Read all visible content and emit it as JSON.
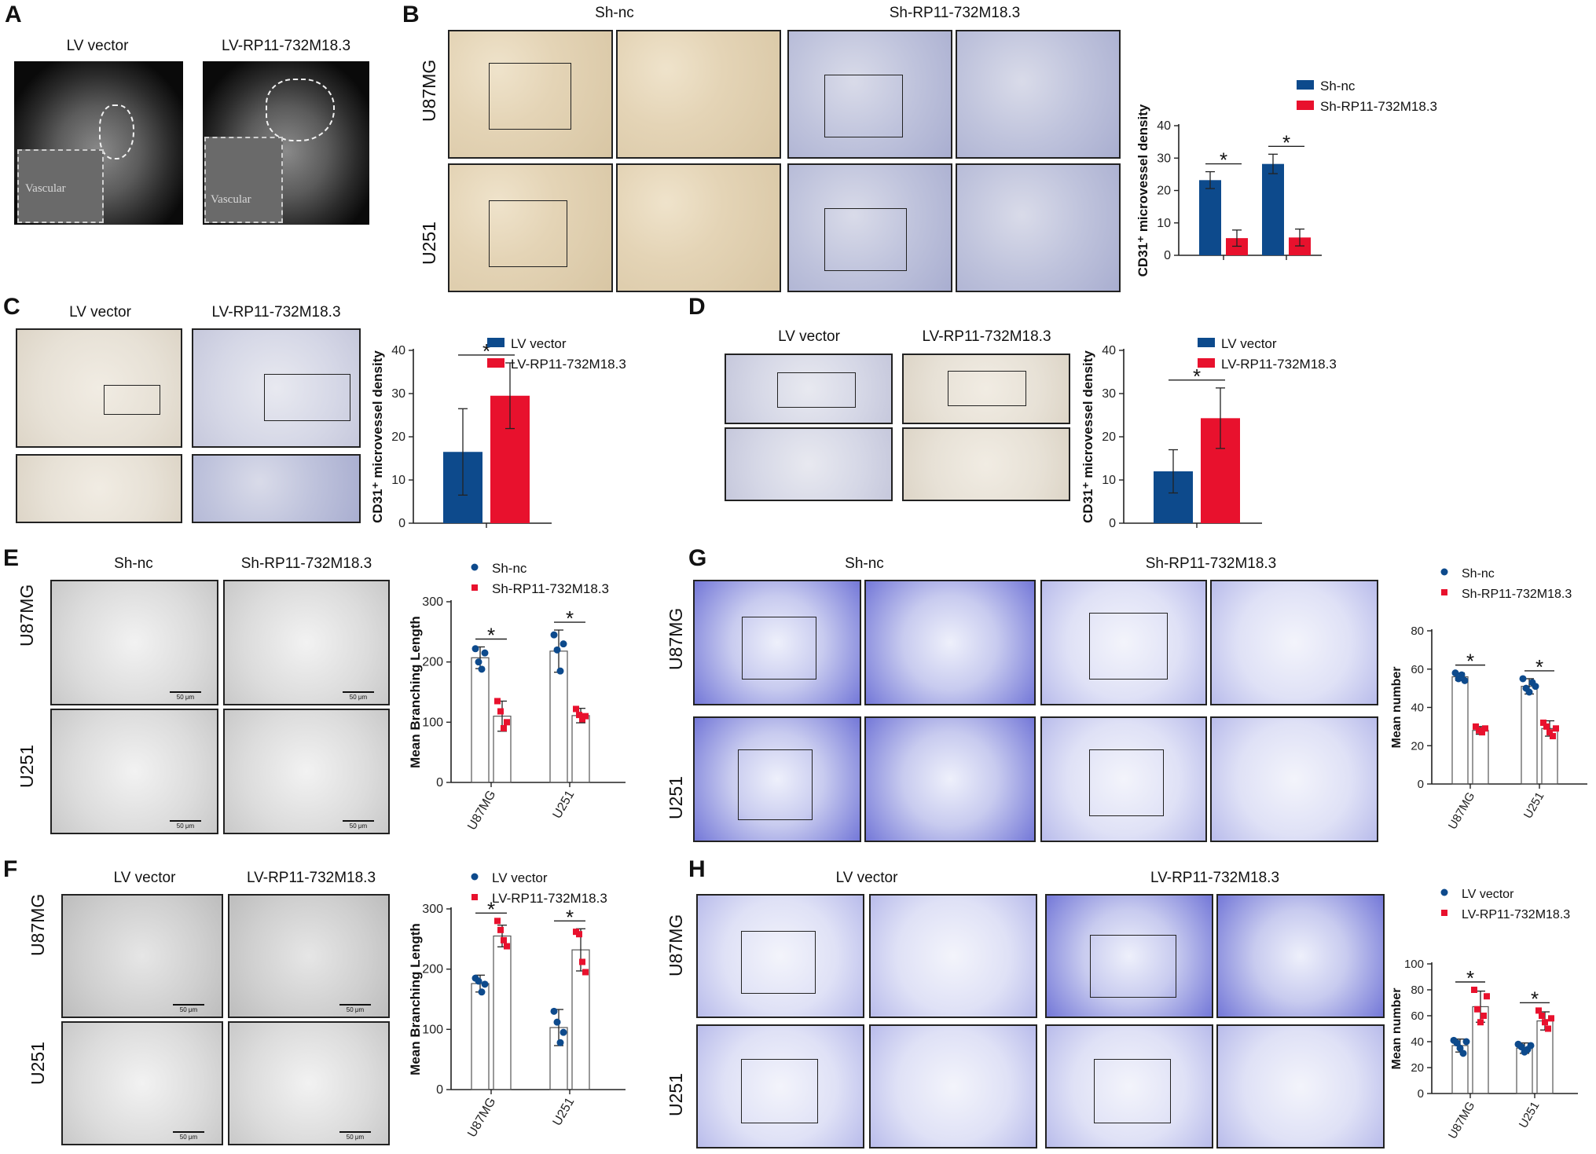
{
  "panels": {
    "A": {
      "letter": "A",
      "col_labels": [
        "LV vector",
        "LV-RP11-732M18.3"
      ],
      "inset_label": "Vascular"
    },
    "B": {
      "letter": "B",
      "col_labels": [
        "Sh-nc",
        "Sh-RP11-732M18.3"
      ],
      "row_labels": [
        "U87MG",
        "U251"
      ]
    },
    "C": {
      "letter": "C",
      "col_labels": [
        "LV vector",
        "LV-RP11-732M18.3"
      ]
    },
    "D": {
      "letter": "D",
      "col_labels": [
        "LV vector",
        "LV-RP11-732M18.3"
      ]
    },
    "E": {
      "letter": "E",
      "col_labels": [
        "Sh-nc",
        "Sh-RP11-732M18.3"
      ],
      "row_labels": [
        "U87MG",
        "U251"
      ],
      "scale_bar": "50 μm"
    },
    "F": {
      "letter": "F",
      "col_labels": [
        "LV vector",
        "LV-RP11-732M18.3"
      ],
      "row_labels": [
        "U87MG",
        "U251"
      ],
      "scale_bar": "50 μm"
    },
    "G": {
      "letter": "G",
      "col_labels": [
        "Sh-nc",
        "Sh-RP11-732M18.3"
      ],
      "row_labels": [
        "U87MG",
        "U251"
      ]
    },
    "H": {
      "letter": "H",
      "col_labels": [
        "LV vector",
        "LV-RP11-732M18.3"
      ],
      "row_labels": [
        "U87MG",
        "U251"
      ]
    }
  },
  "colors": {
    "blue": "#0d4a8c",
    "red": "#e8112d"
  },
  "chart_data": [
    {
      "id": "B",
      "type": "bar",
      "categories": [
        "U87MG",
        "U251"
      ],
      "series": [
        {
          "name": "Sh-nc",
          "values": [
            23.2,
            28.2
          ],
          "err": [
            2.6,
            3.0
          ]
        },
        {
          "name": "Sh-RP11-732M18.3",
          "values": [
            5.3,
            5.5
          ],
          "err": [
            2.5,
            2.6
          ]
        }
      ],
      "ylabel": "CD31⁺ microvessel density",
      "ylim": [
        0,
        40
      ],
      "yticks": [
        0,
        10,
        20,
        30,
        40
      ],
      "show_xtick_labels": false,
      "sig": "*"
    },
    {
      "id": "C",
      "type": "bar",
      "categories": [
        ""
      ],
      "series": [
        {
          "name": "LV vector",
          "values": [
            16.5
          ],
          "err": [
            10.0
          ]
        },
        {
          "name": "LV-RP11-732M18.3",
          "values": [
            29.5
          ],
          "err": [
            7.6
          ]
        }
      ],
      "ylabel": "CD31⁺ microvessel density",
      "ylim": [
        0,
        40
      ],
      "yticks": [
        0,
        10,
        20,
        30,
        40
      ],
      "show_xtick_labels": false,
      "sig": "*"
    },
    {
      "id": "D",
      "type": "bar",
      "categories": [
        ""
      ],
      "series": [
        {
          "name": "LV vector",
          "values": [
            12.0
          ],
          "err": [
            5.0
          ]
        },
        {
          "name": "LV-RP11-732M18.3",
          "values": [
            24.3
          ],
          "err": [
            7.0
          ]
        }
      ],
      "ylabel": "CD31⁺ microvessel density",
      "ylim": [
        0,
        40
      ],
      "yticks": [
        0,
        10,
        20,
        30,
        40
      ],
      "show_xtick_labels": false,
      "sig": "*"
    },
    {
      "id": "E",
      "type": "bar",
      "categories": [
        "U87MG",
        "U251"
      ],
      "series": [
        {
          "name": "Sh-nc",
          "values": [
            207,
            218
          ],
          "err": [
            18,
            35
          ],
          "points": [
            [
              222,
              200,
              188,
              215
            ],
            [
              245,
              220,
              185,
              230
            ]
          ]
        },
        {
          "name": "Sh-RP11-732M18.3",
          "values": [
            110,
            111
          ],
          "err": [
            25,
            12
          ],
          "points": [
            [
              135,
              118,
              90,
              100
            ],
            [
              122,
              112,
              105,
              110
            ]
          ]
        }
      ],
      "ylabel": "Mean Branching Length",
      "ylim": [
        0,
        300
      ],
      "yticks": [
        0,
        100,
        200,
        300
      ],
      "show_xtick_labels": true,
      "sig": "*"
    },
    {
      "id": "F",
      "type": "bar",
      "categories": [
        "U87MG",
        "U251"
      ],
      "series": [
        {
          "name": "LV vector",
          "values": [
            176,
            103
          ],
          "err": [
            14,
            30
          ],
          "points": [
            [
              185,
              180,
              162,
              175
            ],
            [
              130,
              112,
              78,
              95
            ]
          ]
        },
        {
          "name": "LV-RP11-732M18.3",
          "values": [
            255,
            232
          ],
          "err": [
            18,
            35
          ],
          "points": [
            [
              280,
              265,
              248,
              238
            ],
            [
              262,
              258,
              212,
              195
            ]
          ]
        }
      ],
      "ylabel": "Mean Branching Length",
      "ylim": [
        0,
        300
      ],
      "yticks": [
        0,
        100,
        200,
        300
      ],
      "show_xtick_labels": true,
      "sig": "*"
    },
    {
      "id": "G",
      "type": "bar",
      "categories": [
        "U87MG",
        "U251"
      ],
      "series": [
        {
          "name": "Sh-nc",
          "values": [
            56,
            51
          ],
          "err": [
            2,
            4
          ],
          "points": [
            [
              58,
              55,
              57,
              54
            ],
            [
              55,
              50,
              48,
              53,
              51
            ]
          ]
        },
        {
          "name": "Sh-RP11-732M18.3",
          "values": [
            28,
            29
          ],
          "err": [
            2,
            4
          ],
          "points": [
            [
              30,
              28,
              27,
              29
            ],
            [
              32,
              30,
              27,
              25,
              29
            ]
          ]
        }
      ],
      "ylabel": "Mean number",
      "ylim": [
        0,
        80
      ],
      "yticks": [
        0,
        20,
        40,
        60,
        80
      ],
      "show_xtick_labels": true,
      "sig": "*"
    },
    {
      "id": "H",
      "type": "bar",
      "categories": [
        "U87MG",
        "U251"
      ],
      "series": [
        {
          "name": "LV vector",
          "values": [
            37,
            35
          ],
          "err": [
            5,
            4
          ],
          "points": [
            [
              41,
              39,
              35,
              31,
              40
            ],
            [
              38,
              36,
              32,
              34,
              37
            ]
          ]
        },
        {
          "name": "LV-RP11-732M18.3",
          "values": [
            67,
            56
          ],
          "err": [
            12,
            7
          ],
          "points": [
            [
              80,
              65,
              55,
              60,
              75
            ],
            [
              64,
              60,
              55,
              50,
              58
            ]
          ]
        }
      ],
      "ylabel": "Mean number",
      "ylim": [
        0,
        100
      ],
      "yticks": [
        0,
        20,
        40,
        60,
        80,
        100
      ],
      "show_xtick_labels": true,
      "sig": "*"
    }
  ]
}
